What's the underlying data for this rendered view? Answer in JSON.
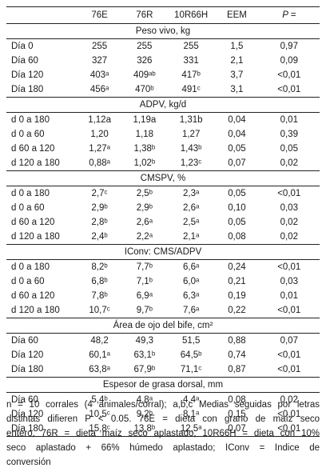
{
  "columns": [
    "",
    "76E",
    "76R",
    "10R66H",
    "EEM",
    "P ="
  ],
  "sections": [
    {
      "title": "Peso vivo, kg",
      "rows": [
        {
          "label": "Día 0",
          "v1": "255",
          "v2": "255",
          "v3": "255",
          "eem": "1,5",
          "p": "0,97"
        },
        {
          "label": "Día 60",
          "v1": "327",
          "v2": "326",
          "v3": "331",
          "eem": "2,1",
          "p": "0,09"
        },
        {
          "label": "Día 120",
          "v1": "403ᵃ",
          "v2": "409ᵃᵇ",
          "v3": "417ᵇ",
          "eem": "3,7",
          "p": "<0,01"
        },
        {
          "label": "Día 180",
          "v1": "456ᵃ",
          "v2": "470ᵇ",
          "v3": "491ᶜ",
          "eem": "3,1",
          "p": "<0,01"
        }
      ]
    },
    {
      "title": "ADPV, kg/d",
      "rows": [
        {
          "label": "d 0 a 180",
          "v1": "1,12a",
          "v2": "1,19a",
          "v3": "1,31b",
          "eem": "0,04",
          "p": "0,01"
        },
        {
          "label": "d 0 a 60",
          "v1": "1,20",
          "v2": "1,18",
          "v3": "1,27",
          "eem": "0,04",
          "p": "0,39"
        },
        {
          "label": "d 60 a 120",
          "v1": "1,27ᵃ",
          "v2": "1,38ᵇ",
          "v3": "1,43ᵇ",
          "eem": "0,05",
          "p": "0,05"
        },
        {
          "label": "d 120 a 180",
          "v1": "0,88ᵃ",
          "v2": "1,02ᵇ",
          "v3": "1,23ᶜ",
          "eem": "0,07",
          "p": "0,02"
        }
      ]
    },
    {
      "title": "CMSPV, %",
      "rows": [
        {
          "label": "d 0 a 180",
          "v1": "2,7ᶜ",
          "v2": "2,5ᵇ",
          "v3": "2,3ᵃ",
          "eem": "0,05",
          "p": "<0,01"
        },
        {
          "label": "d 0 a 60",
          "v1": "2,9ᵇ",
          "v2": "2,9ᵇ",
          "v3": "2,6ᵃ",
          "eem": "0,10",
          "p": "0,03"
        },
        {
          "label": "d 60 a 120",
          "v1": "2,8ᵇ",
          "v2": "2,6ᵃ",
          "v3": "2,5ᵃ",
          "eem": "0,05",
          "p": "0,02"
        },
        {
          "label": "d 120 a 180",
          "v1": "2,4ᵇ",
          "v2": "2,2ᵃ",
          "v3": "2,1ᵃ",
          "eem": "0,08",
          "p": "0,02"
        }
      ]
    },
    {
      "title": "IConv: CMS/ADPV",
      "rows": [
        {
          "label": "d 0 a 180",
          "v1": "8,2ᵇ",
          "v2": "7,7ᵇ",
          "v3": "6,6ᵃ",
          "eem": "0,24",
          "p": "<0,01"
        },
        {
          "label": "d 0 a 60",
          "v1": "6,8ᵇ",
          "v2": "7,1ᵇ",
          "v3": "6,0ᵃ",
          "eem": "0,21",
          "p": "0,03"
        },
        {
          "label": "d 60 a 120",
          "v1": "7,8ᵇ",
          "v2": "6,9ᵃ",
          "v3": "6,3ᵃ",
          "eem": "0,19",
          "p": "0,01"
        },
        {
          "label": "d 120 a 180",
          "v1": "10,7ᶜ",
          "v2": "9,7ᵇ",
          "v3": "7,6ᵃ",
          "eem": "0,22",
          "p": "<0,01"
        }
      ]
    },
    {
      "title": "Área de ojo del bife, cm²",
      "rows": [
        {
          "label": "Día 60",
          "v1": "48,2",
          "v2": "49,3",
          "v3": "51,5",
          "eem": "0,88",
          "p": "0,07"
        },
        {
          "label": "Día 120",
          "v1": "60,1ᵃ",
          "v2": "63,1ᵇ",
          "v3": "64,5ᵇ",
          "eem": "0,74",
          "p": "<0,01"
        },
        {
          "label": "Día 180",
          "v1": "63,8ᵃ",
          "v2": "67,9ᵇ",
          "v3": "71,1ᶜ",
          "eem": "0,87",
          "p": "<0,01"
        }
      ]
    },
    {
      "title": "Espesor de grasa dorsal, mm",
      "rows": [
        {
          "label": "Día 60",
          "v1": "5,4ᵇ",
          "v2": "4,8ᵃ",
          "v3": "4,4ᵃ",
          "eem": "0,08",
          "p": "0,02"
        },
        {
          "label": "Día 120",
          "v1": "10,5ᶜ",
          "v2": "9,2ᵇ",
          "v3": "8,1ᵃ",
          "eem": "0,15",
          "p": "<0,01"
        },
        {
          "label": "Día 180",
          "v1": "15,8ᶜ",
          "v2": "13,8ᵇ",
          "v3": "12,5ᵃ",
          "eem": "0,07",
          "p": "<0,01"
        }
      ]
    }
  ],
  "footnote_lines": [
    "n = 10 corrales (4 animales/corral); a,b,c Medias seguidas por letras",
    "distintas difieren P < 0.05. 76E = dieta con grano de maíz seco",
    "entero, 76R = dieta maíz seco aplastado, 10R66H = dieta con 10%",
    "seco aplastado + 66% húmedo aplastado; IConv = Indice de",
    "conversión"
  ]
}
